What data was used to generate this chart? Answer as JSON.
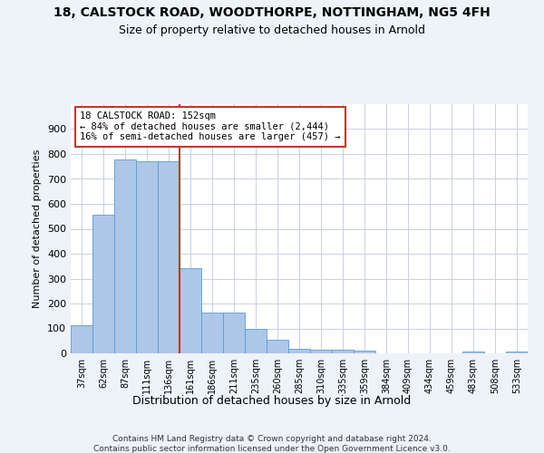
{
  "title1": "18, CALSTOCK ROAD, WOODTHORPE, NOTTINGHAM, NG5 4FH",
  "title2": "Size of property relative to detached houses in Arnold",
  "xlabel": "Distribution of detached houses by size in Arnold",
  "ylabel": "Number of detached properties",
  "categories": [
    "37sqm",
    "62sqm",
    "87sqm",
    "111sqm",
    "136sqm",
    "161sqm",
    "186sqm",
    "211sqm",
    "235sqm",
    "260sqm",
    "285sqm",
    "310sqm",
    "335sqm",
    "359sqm",
    "384sqm",
    "409sqm",
    "434sqm",
    "459sqm",
    "483sqm",
    "508sqm",
    "533sqm"
  ],
  "values": [
    113,
    557,
    779,
    771,
    770,
    343,
    163,
    163,
    98,
    53,
    18,
    15,
    15,
    10,
    0,
    0,
    0,
    0,
    8,
    0,
    8
  ],
  "bar_color": "#aec6e8",
  "bar_edgecolor": "#5b9bd5",
  "vline_x": 4.5,
  "vline_color": "#c0392b",
  "annotation_line1": "18 CALSTOCK ROAD: 152sqm",
  "annotation_line2": "← 84% of detached houses are smaller (2,444)",
  "annotation_line3": "16% of semi-detached houses are larger (457) →",
  "annotation_box_color": "#ffffff",
  "annotation_box_edgecolor": "#c0392b",
  "ylim": [
    0,
    1000
  ],
  "yticks": [
    0,
    100,
    200,
    300,
    400,
    500,
    600,
    700,
    800,
    900,
    1000
  ],
  "footer1": "Contains HM Land Registry data © Crown copyright and database right 2024.",
  "footer2": "Contains public sector information licensed under the Open Government Licence v3.0.",
  "bg_color": "#eef2f9",
  "plot_bg_color": "#ffffff",
  "grid_color": "#c8d0e0"
}
